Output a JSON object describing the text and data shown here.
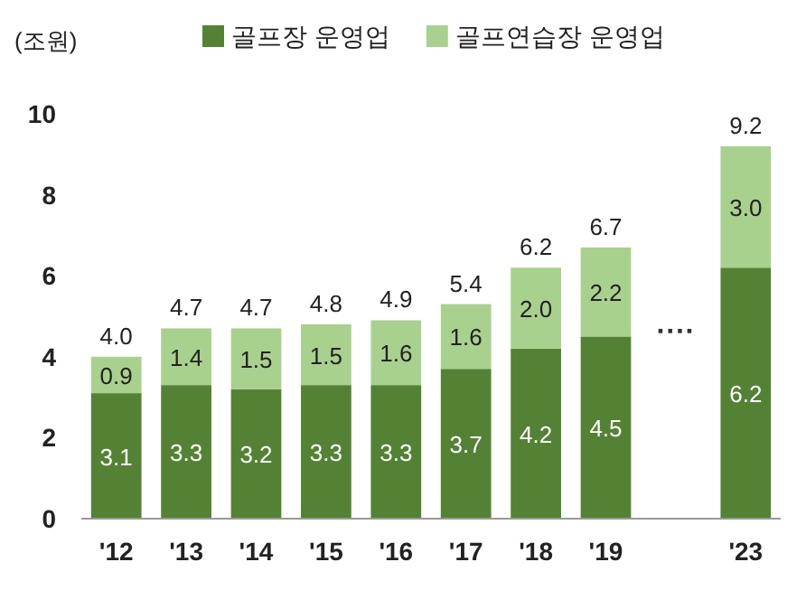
{
  "chart_data": {
    "type": "bar",
    "stacked": true,
    "ylabel": "(조원)",
    "categories": [
      "'12",
      "'13",
      "'14",
      "'15",
      "'16",
      "'17",
      "'18",
      "'19",
      null,
      "'23"
    ],
    "series": [
      {
        "name": "골프장 운영업",
        "color": "#548235",
        "values": [
          3.1,
          3.3,
          3.2,
          3.3,
          3.3,
          3.7,
          4.2,
          4.5,
          null,
          6.2
        ],
        "value_labels": [
          "3.1",
          "3.3",
          "3.2",
          "3.3",
          "3.3",
          "3.7",
          "4.2",
          "4.5",
          null,
          "6.2"
        ]
      },
      {
        "name": "골프연습장 운영업",
        "color": "#a9d18e",
        "values": [
          0.9,
          1.4,
          1.5,
          1.5,
          1.6,
          1.6,
          2.0,
          2.2,
          null,
          3.0
        ],
        "value_labels": [
          "0.9",
          "1.4",
          "1.5",
          "1.5",
          "1.6",
          "1.6",
          "2.0",
          "2.2",
          null,
          "3.0"
        ]
      }
    ],
    "totals": [
      "4.0",
      "4.7",
      "4.7",
      "4.8",
      "4.9",
      "5.4",
      "6.2",
      "6.7",
      null,
      "9.2"
    ],
    "ylim": [
      0,
      10
    ],
    "yticks": [
      0,
      2,
      4,
      6,
      8,
      10
    ],
    "legend": "top",
    "grid": false,
    "annotations": [
      "····"
    ]
  }
}
